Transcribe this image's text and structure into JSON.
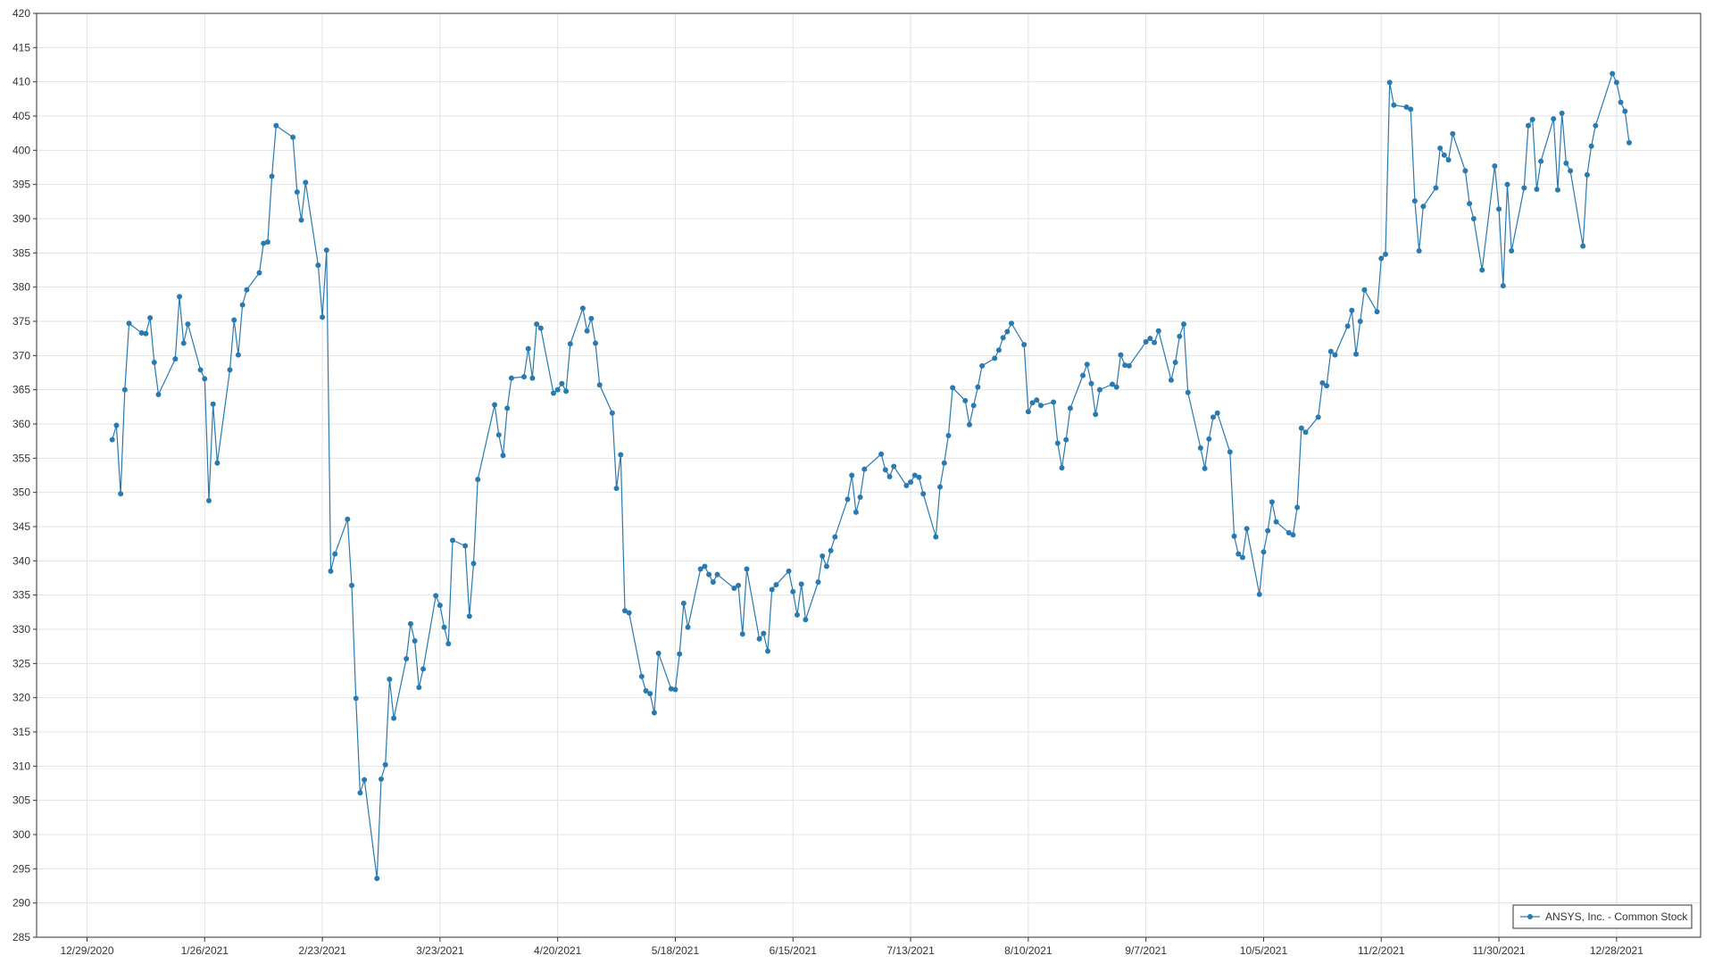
{
  "chart_data": {
    "type": "line",
    "x": [
      "1/4/2021",
      "1/5/2021",
      "1/6/2021",
      "1/7/2021",
      "1/8/2021",
      "1/11/2021",
      "1/12/2021",
      "1/13/2021",
      "1/14/2021",
      "1/15/2021",
      "1/19/2021",
      "1/20/2021",
      "1/21/2021",
      "1/22/2021",
      "1/25/2021",
      "1/26/2021",
      "1/27/2021",
      "1/28/2021",
      "1/29/2021",
      "2/1/2021",
      "2/2/2021",
      "2/3/2021",
      "2/4/2021",
      "2/5/2021",
      "2/8/2021",
      "2/9/2021",
      "2/10/2021",
      "2/11/2021",
      "2/12/2021",
      "2/16/2021",
      "2/17/2021",
      "2/18/2021",
      "2/19/2021",
      "2/22/2021",
      "2/23/2021",
      "2/24/2021",
      "2/25/2021",
      "2/26/2021",
      "3/1/2021",
      "3/2/2021",
      "3/3/2021",
      "3/4/2021",
      "3/5/2021",
      "3/8/2021",
      "3/9/2021",
      "3/10/2021",
      "3/11/2021",
      "3/12/2021",
      "3/15/2021",
      "3/16/2021",
      "3/17/2021",
      "3/18/2021",
      "3/19/2021",
      "3/22/2021",
      "3/23/2021",
      "3/24/2021",
      "3/25/2021",
      "3/26/2021",
      "3/29/2021",
      "3/30/2021",
      "3/31/2021",
      "4/1/2021",
      "4/5/2021",
      "4/6/2021",
      "4/7/2021",
      "4/8/2021",
      "4/9/2021",
      "4/12/2021",
      "4/13/2021",
      "4/14/2021",
      "4/15/2021",
      "4/16/2021",
      "4/19/2021",
      "4/20/2021",
      "4/21/2021",
      "4/22/2021",
      "4/23/2021",
      "4/26/2021",
      "4/27/2021",
      "4/28/2021",
      "4/29/2021",
      "4/30/2021",
      "5/3/2021",
      "5/4/2021",
      "5/5/2021",
      "5/6/2021",
      "5/7/2021",
      "5/10/2021",
      "5/11/2021",
      "5/12/2021",
      "5/13/2021",
      "5/14/2021",
      "5/17/2021",
      "5/18/2021",
      "5/19/2021",
      "5/20/2021",
      "5/21/2021",
      "5/24/2021",
      "5/25/2021",
      "5/26/2021",
      "5/27/2021",
      "5/28/2021",
      "6/1/2021",
      "6/2/2021",
      "6/3/2021",
      "6/4/2021",
      "6/7/2021",
      "6/8/2021",
      "6/9/2021",
      "6/10/2021",
      "6/11/2021",
      "6/14/2021",
      "6/15/2021",
      "6/16/2021",
      "6/17/2021",
      "6/18/2021",
      "6/21/2021",
      "6/22/2021",
      "6/23/2021",
      "6/24/2021",
      "6/25/2021",
      "6/28/2021",
      "6/29/2021",
      "6/30/2021",
      "7/1/2021",
      "7/2/2021",
      "7/6/2021",
      "7/7/2021",
      "7/8/2021",
      "7/9/2021",
      "7/12/2021",
      "7/13/2021",
      "7/14/2021",
      "7/15/2021",
      "7/16/2021",
      "7/19/2021",
      "7/20/2021",
      "7/21/2021",
      "7/22/2021",
      "7/23/2021",
      "7/26/2021",
      "7/27/2021",
      "7/28/2021",
      "7/29/2021",
      "7/30/2021",
      "8/2/2021",
      "8/3/2021",
      "8/4/2021",
      "8/5/2021",
      "8/6/2021",
      "8/9/2021",
      "8/10/2021",
      "8/11/2021",
      "8/12/2021",
      "8/13/2021",
      "8/16/2021",
      "8/17/2021",
      "8/18/2021",
      "8/19/2021",
      "8/20/2021",
      "8/23/2021",
      "8/24/2021",
      "8/25/2021",
      "8/26/2021",
      "8/27/2021",
      "8/30/2021",
      "8/31/2021",
      "9/1/2021",
      "9/2/2021",
      "9/3/2021",
      "9/7/2021",
      "9/8/2021",
      "9/9/2021",
      "9/10/2021",
      "9/13/2021",
      "9/14/2021",
      "9/15/2021",
      "9/16/2021",
      "9/17/2021",
      "9/20/2021",
      "9/21/2021",
      "9/22/2021",
      "9/23/2021",
      "9/24/2021",
      "9/27/2021",
      "9/28/2021",
      "9/29/2021",
      "9/30/2021",
      "10/1/2021",
      "10/4/2021",
      "10/5/2021",
      "10/6/2021",
      "10/7/2021",
      "10/8/2021",
      "10/11/2021",
      "10/12/2021",
      "10/13/2021",
      "10/14/2021",
      "10/15/2021",
      "10/18/2021",
      "10/19/2021",
      "10/20/2021",
      "10/21/2021",
      "10/22/2021",
      "10/25/2021",
      "10/26/2021",
      "10/27/2021",
      "10/28/2021",
      "10/29/2021",
      "11/1/2021",
      "11/2/2021",
      "11/3/2021",
      "11/4/2021",
      "11/5/2021",
      "11/8/2021",
      "11/9/2021",
      "11/10/2021",
      "11/11/2021",
      "11/12/2021",
      "11/15/2021",
      "11/16/2021",
      "11/17/2021",
      "11/18/2021",
      "11/19/2021",
      "11/22/2021",
      "11/23/2021",
      "11/24/2021",
      "11/26/2021",
      "11/29/2021",
      "11/30/2021",
      "12/1/2021",
      "12/2/2021",
      "12/3/2021",
      "12/6/2021",
      "12/7/2021",
      "12/8/2021",
      "12/9/2021",
      "12/10/2021",
      "12/13/2021",
      "12/14/2021",
      "12/15/2021",
      "12/16/2021",
      "12/17/2021",
      "12/20/2021",
      "12/21/2021",
      "12/22/2021",
      "12/23/2021",
      "12/27/2021",
      "12/28/2021",
      "12/29/2021",
      "12/30/2021",
      "12/31/2021"
    ],
    "series": [
      {
        "name": "ANSYS, Inc. - Common Stock",
        "color": "#2a7ab0",
        "values": [
          357.7,
          359.8,
          349.8,
          365,
          374.7,
          373.3,
          373.2,
          375.5,
          369,
          364.3,
          369.5,
          378.6,
          371.8,
          374.6,
          367.9,
          366.6,
          348.8,
          362.9,
          354.3,
          367.9,
          375.2,
          370.1,
          377.4,
          379.6,
          382.1,
          386.4,
          386.6,
          396.2,
          403.6,
          401.9,
          393.9,
          389.8,
          395.3,
          383.2,
          375.6,
          385.4,
          338.5,
          341,
          346.1,
          336.4,
          319.9,
          306.1,
          308,
          293.6,
          308.1,
          310.2,
          322.7,
          317,
          325.7,
          330.8,
          328.3,
          321.5,
          324.2,
          334.9,
          333.5,
          330.3,
          327.9,
          343,
          342.2,
          331.9,
          339.6,
          351.9,
          362.8,
          358.4,
          355.4,
          362.3,
          366.7,
          366.9,
          371,
          366.7,
          374.6,
          374,
          364.5,
          365,
          365.9,
          364.8,
          371.7,
          376.9,
          373.6,
          375.4,
          371.8,
          365.7,
          361.6,
          350.6,
          355.5,
          332.7,
          332.4,
          323.1,
          321,
          320.6,
          317.8,
          326.5,
          321.3,
          321.2,
          326.4,
          333.8,
          330.3,
          338.8,
          339.2,
          338,
          336.9,
          338,
          336,
          336.4,
          329.3,
          338.8,
          328.6,
          329.4,
          326.8,
          335.8,
          336.5,
          338.5,
          335.5,
          332.1,
          336.6,
          331.4,
          336.9,
          340.7,
          339.2,
          341.5,
          343.5,
          349,
          352.5,
          347.1,
          349.3,
          353.4,
          355.6,
          353.3,
          352.3,
          353.8,
          351,
          351.5,
          352.5,
          352.2,
          349.8,
          343.5,
          350.8,
          354.3,
          358.3,
          365.3,
          363.4,
          359.9,
          362.7,
          365.4,
          368.5,
          369.6,
          370.8,
          372.6,
          373.5,
          374.7,
          371.6,
          361.8,
          363.1,
          363.5,
          362.7,
          363.2,
          357.2,
          353.6,
          357.7,
          362.3,
          367.1,
          368.7,
          365.9,
          361.4,
          365,
          365.8,
          365.4,
          370.1,
          368.6,
          368.5,
          372,
          372.5,
          371.9,
          373.6,
          366.4,
          369,
          372.8,
          374.6,
          364.6,
          356.5,
          353.5,
          357.8,
          361,
          361.6,
          355.9,
          343.6,
          341,
          340.5,
          344.7,
          335.1,
          341.3,
          344.4,
          348.6,
          345.7,
          344.1,
          343.8,
          347.8,
          359.4,
          358.8,
          361,
          366,
          365.6,
          370.6,
          370.1,
          374.3,
          376.6,
          370.2,
          375,
          379.6,
          376.4,
          384.2,
          384.8,
          409.9,
          406.6,
          406.3,
          406,
          392.6,
          385.3,
          391.8,
          394.5,
          400.3,
          399.3,
          398.6,
          402.4,
          397,
          392.2,
          390,
          382.5,
          397.7,
          391.4,
          380.2,
          395,
          385.3,
          394.5,
          403.6,
          404.5,
          394.3,
          398.4,
          404.6,
          394.2,
          405.4,
          398.1,
          397,
          386,
          396.4,
          400.6,
          403.6,
          411.2,
          409.9,
          407,
          405.7,
          401.1
        ]
      }
    ],
    "xlim": [
      "12/17/2020",
      "1/17/2022"
    ],
    "xticks": [
      "12/29/2020",
      "1/26/2021",
      "2/23/2021",
      "3/23/2021",
      "4/20/2021",
      "5/18/2021",
      "6/15/2021",
      "7/13/2021",
      "8/10/2021",
      "9/7/2021",
      "10/5/2021",
      "11/2/2021",
      "11/30/2021",
      "12/28/2021"
    ],
    "ylim": [
      285,
      420
    ],
    "yticks": [
      285,
      290,
      295,
      300,
      305,
      310,
      315,
      320,
      325,
      330,
      335,
      340,
      345,
      350,
      355,
      360,
      365,
      370,
      375,
      380,
      385,
      390,
      395,
      400,
      405,
      410,
      415,
      420
    ],
    "grid": true,
    "legend": "bottom-right"
  }
}
